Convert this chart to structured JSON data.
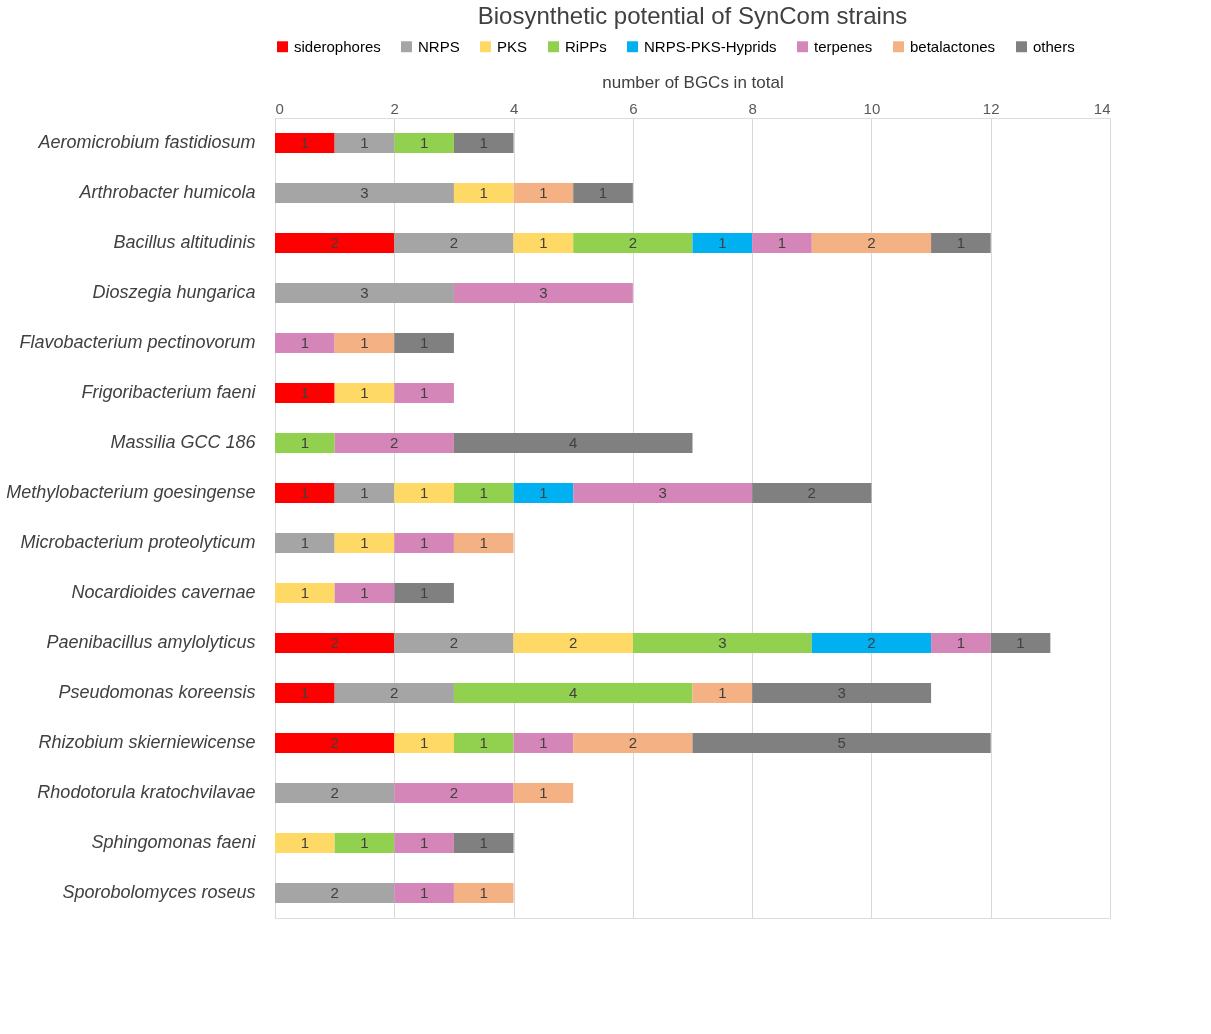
{
  "chart_data": {
    "type": "bar",
    "orientation": "horizontal",
    "stacked": true,
    "title": "Biosynthetic potential of SynCom strains",
    "xlabel": "number of BGCs in total",
    "categories": [
      "Aeromicrobium fastidiosum",
      "Arthrobacter humicola",
      "Bacillus altitudinis",
      "Dioszegia hungarica",
      "Flavobacterium pectinovorum",
      "Frigoribacterium faeni",
      "Massilia GCC 186",
      "Methylobacterium goesingense",
      "Microbacterium proteolyticum",
      "Nocardioides cavernae",
      "Paenibacillus amylolyticus",
      "Pseudomonas koreensis",
      "Rhizobium skierniewicense",
      "Rhodotorula kratochvilavae",
      "Sphingomonas faeni",
      "Sporobolomyces roseus"
    ],
    "series": [
      {
        "name": "siderophores",
        "color": "#ff0000",
        "values": [
          1,
          null,
          2,
          null,
          null,
          1,
          null,
          1,
          null,
          null,
          2,
          1,
          2,
          null,
          null,
          null
        ]
      },
      {
        "name": "NRPS",
        "color": "#a5a5a5",
        "values": [
          1,
          3,
          2,
          3,
          null,
          null,
          null,
          1,
          1,
          null,
          2,
          2,
          null,
          2,
          null,
          2
        ]
      },
      {
        "name": "PKS",
        "color": "#ffd966",
        "values": [
          null,
          1,
          1,
          null,
          null,
          1,
          null,
          1,
          1,
          1,
          2,
          null,
          1,
          null,
          1,
          null
        ]
      },
      {
        "name": "RiPPs",
        "color": "#92d050",
        "values": [
          1,
          null,
          2,
          null,
          null,
          null,
          1,
          1,
          null,
          null,
          3,
          4,
          1,
          null,
          1,
          null
        ]
      },
      {
        "name": "NRPS-PKS-Hyprids",
        "color": "#00b0f0",
        "values": [
          null,
          null,
          1,
          null,
          null,
          null,
          null,
          1,
          null,
          null,
          2,
          null,
          null,
          null,
          null,
          null
        ]
      },
      {
        "name": "terpenes",
        "color": "#d486b8",
        "values": [
          null,
          null,
          1,
          3,
          1,
          1,
          2,
          3,
          1,
          1,
          1,
          null,
          1,
          2,
          1,
          1
        ]
      },
      {
        "name": "betalactones",
        "color": "#f4b183",
        "values": [
          null,
          1,
          2,
          null,
          1,
          null,
          null,
          null,
          1,
          null,
          null,
          1,
          2,
          1,
          null,
          1
        ]
      },
      {
        "name": "others",
        "color": "#808080",
        "values": [
          1,
          1,
          1,
          null,
          1,
          null,
          4,
          2,
          null,
          1,
          1,
          3,
          5,
          null,
          1,
          null
        ]
      }
    ],
    "xlim": [
      0,
      14
    ],
    "xticks": [
      0,
      2,
      4,
      6,
      8,
      10,
      12,
      14
    ],
    "grid": "x",
    "legend": "top",
    "data_labels": true
  }
}
